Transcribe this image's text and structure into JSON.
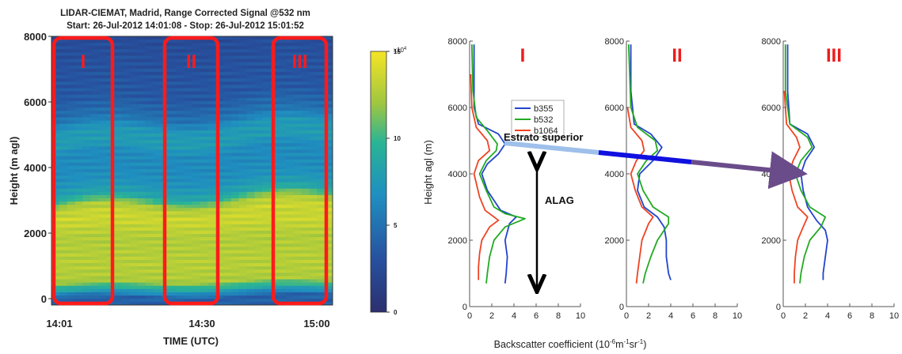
{
  "chart_data": [
    {
      "type": "heatmap",
      "title": "LIDAR-CIEMAT, Madrid, Range Corrected Signal @532 nm",
      "subtitle": "Start: 26-Jul-2012 14:01:08 - Stop: 26-Jul-2012 15:01:52",
      "xlabel": "TIME (UTC)",
      "ylabel": "Height (m agl)",
      "x_ticks": [
        "14:01",
        "14:30",
        "15:00"
      ],
      "y_ticks": [
        "0",
        "2000",
        "4000",
        "6000",
        "8000"
      ],
      "ylim": [
        0,
        8000
      ],
      "colorbar": {
        "multiplier": "x10",
        "exponent": "4",
        "ticks": [
          "0",
          "5",
          "10",
          "15"
        ],
        "range": [
          0,
          15
        ]
      },
      "regions": [
        "I",
        "II",
        "III"
      ],
      "region_color": "#ff1a1a",
      "profile": [
        {
          "z": 0,
          "v": 4
        },
        {
          "z": 200,
          "v": 8
        },
        {
          "z": 500,
          "v": 12.5
        },
        {
          "z": 1000,
          "v": 12.8
        },
        {
          "z": 1800,
          "v": 12.6
        },
        {
          "z": 2400,
          "v": 13.6
        },
        {
          "z": 2700,
          "v": 12.5
        },
        {
          "z": 3000,
          "v": 8.5
        },
        {
          "z": 3400,
          "v": 7
        },
        {
          "z": 3800,
          "v": 6.5
        },
        {
          "z": 4300,
          "v": 6.5
        },
        {
          "z": 4600,
          "v": 7.8
        },
        {
          "z": 5000,
          "v": 7.5
        },
        {
          "z": 5400,
          "v": 5
        },
        {
          "z": 6000,
          "v": 3.5
        },
        {
          "z": 8000,
          "v": 2.5
        }
      ]
    },
    {
      "type": "line",
      "xlabel": "Backscatter coefficient (10⁻⁶m⁻¹sr⁻¹)",
      "ylabel": "Height agl (m)",
      "x_ticks": [
        "0",
        "2",
        "4",
        "6",
        "8",
        "10"
      ],
      "y_ticks": [
        "0",
        "2000",
        "4000",
        "6000",
        "8000"
      ],
      "xlim": [
        0,
        10
      ],
      "ylim": [
        0,
        8000
      ],
      "legend": {
        "placement": "top-left of panel I",
        "entries": [
          "b355",
          "b532",
          "b1064"
        ]
      },
      "series_colors": {
        "b355": "#2244cc",
        "b532": "#22aa22",
        "b1064": "#ee4422"
      },
      "panels": [
        {
          "label": "I",
          "series": [
            {
              "name": "b355",
              "points": [
                [
                  3.2,
                  700
                ],
                [
                  3.3,
                  1000
                ],
                [
                  3.4,
                  1500
                ],
                [
                  3.2,
                  2000
                ],
                [
                  3.6,
                  2500
                ],
                [
                  4.2,
                  2700
                ],
                [
                  2.8,
                  2900
                ],
                [
                  1.6,
                  3500
                ],
                [
                  1.1,
                  4000
                ],
                [
                  1.6,
                  4300
                ],
                [
                  2.6,
                  4600
                ],
                [
                  3.2,
                  4900
                ],
                [
                  2.6,
                  5200
                ],
                [
                  0.8,
                  5500
                ],
                [
                  0.4,
                  6000
                ],
                [
                  0.4,
                  7000
                ],
                [
                  0.4,
                  7900
                ]
              ]
            },
            {
              "name": "b532",
              "points": [
                [
                  1.5,
                  700
                ],
                [
                  1.6,
                  1000
                ],
                [
                  1.8,
                  1500
                ],
                [
                  2.2,
                  2000
                ],
                [
                  3.2,
                  2400
                ],
                [
                  5.0,
                  2650
                ],
                [
                  3.2,
                  2800
                ],
                [
                  2.2,
                  3000
                ],
                [
                  1.5,
                  3500
                ],
                [
                  0.9,
                  4000
                ],
                [
                  1.5,
                  4400
                ],
                [
                  2.4,
                  4700
                ],
                [
                  2.5,
                  4900
                ],
                [
                  1.6,
                  5300
                ],
                [
                  0.6,
                  5700
                ],
                [
                  0.3,
                  6500
                ],
                [
                  0.2,
                  7900
                ]
              ]
            },
            {
              "name": "b1064",
              "points": [
                [
                  0.8,
                  800
                ],
                [
                  0.8,
                  1200
                ],
                [
                  0.9,
                  1600
                ],
                [
                  1.1,
                  2000
                ],
                [
                  1.8,
                  2400
                ],
                [
                  2.6,
                  2600
                ],
                [
                  1.4,
                  2900
                ],
                [
                  0.9,
                  3300
                ],
                [
                  0.4,
                  4000
                ],
                [
                  0.8,
                  4400
                ],
                [
                  1.8,
                  4700
                ],
                [
                  1.6,
                  5000
                ],
                [
                  0.6,
                  5400
                ],
                [
                  0.2,
                  6000
                ],
                [
                  0.1,
                  7000
                ]
              ]
            }
          ]
        },
        {
          "label": "II",
          "series": [
            {
              "name": "b355",
              "points": [
                [
                  4.0,
                  800
                ],
                [
                  3.8,
                  1000
                ],
                [
                  3.6,
                  1500
                ],
                [
                  3.6,
                  2000
                ],
                [
                  3.4,
                  2400
                ],
                [
                  2.8,
                  2700
                ],
                [
                  1.6,
                  3000
                ],
                [
                  1.0,
                  3500
                ],
                [
                  1.2,
                  4000
                ],
                [
                  2.4,
                  4400
                ],
                [
                  3.2,
                  4800
                ],
                [
                  2.2,
                  5200
                ],
                [
                  0.7,
                  5500
                ],
                [
                  0.4,
                  6500
                ],
                [
                  0.4,
                  7900
                ]
              ]
            },
            {
              "name": "b532",
              "points": [
                [
                  1.5,
                  700
                ],
                [
                  1.7,
                  1000
                ],
                [
                  2.2,
                  1500
                ],
                [
                  2.8,
                  2000
                ],
                [
                  3.8,
                  2500
                ],
                [
                  3.8,
                  2700
                ],
                [
                  2.4,
                  3000
                ],
                [
                  1.5,
                  3500
                ],
                [
                  1.0,
                  4000
                ],
                [
                  1.8,
                  4400
                ],
                [
                  2.8,
                  4700
                ],
                [
                  2.6,
                  5000
                ],
                [
                  1.0,
                  5400
                ],
                [
                  0.4,
                  6000
                ],
                [
                  0.2,
                  7900
                ]
              ]
            },
            {
              "name": "b1064",
              "points": [
                [
                  0.9,
                  700
                ],
                [
                  1.0,
                  1000
                ],
                [
                  1.2,
                  1500
                ],
                [
                  1.4,
                  2000
                ],
                [
                  2.0,
                  2500
                ],
                [
                  2.4,
                  2700
                ],
                [
                  1.4,
                  3000
                ],
                [
                  0.8,
                  3500
                ],
                [
                  0.4,
                  4000
                ],
                [
                  0.9,
                  4400
                ],
                [
                  1.6,
                  4700
                ],
                [
                  1.4,
                  5000
                ],
                [
                  0.4,
                  5400
                ],
                [
                  0.1,
                  6000
                ]
              ]
            }
          ]
        },
        {
          "label": "III",
          "series": [
            {
              "name": "b355",
              "points": [
                [
                  3.6,
                  800
                ],
                [
                  3.6,
                  1000
                ],
                [
                  3.8,
                  1500
                ],
                [
                  4.0,
                  2000
                ],
                [
                  3.8,
                  2300
                ],
                [
                  3.0,
                  2600
                ],
                [
                  2.2,
                  3000
                ],
                [
                  1.8,
                  3500
                ],
                [
                  1.6,
                  4000
                ],
                [
                  2.0,
                  4400
                ],
                [
                  2.8,
                  4800
                ],
                [
                  2.2,
                  5200
                ],
                [
                  0.6,
                  5500
                ],
                [
                  0.4,
                  6500
                ],
                [
                  0.4,
                  7900
                ]
              ]
            },
            {
              "name": "b532",
              "points": [
                [
                  1.5,
                  700
                ],
                [
                  1.6,
                  1000
                ],
                [
                  1.9,
                  1500
                ],
                [
                  2.4,
                  2000
                ],
                [
                  3.4,
                  2400
                ],
                [
                  3.8,
                  2700
                ],
                [
                  2.4,
                  3000
                ],
                [
                  1.6,
                  3500
                ],
                [
                  1.1,
                  4000
                ],
                [
                  1.6,
                  4400
                ],
                [
                  2.6,
                  4800
                ],
                [
                  2.2,
                  5100
                ],
                [
                  0.6,
                  5500
                ],
                [
                  0.2,
                  6500
                ],
                [
                  0.2,
                  7900
                ]
              ]
            },
            {
              "name": "b1064",
              "points": [
                [
                  1.0,
                  700
                ],
                [
                  1.0,
                  1000
                ],
                [
                  1.1,
                  1500
                ],
                [
                  1.3,
                  2000
                ],
                [
                  1.8,
                  2400
                ],
                [
                  2.2,
                  2700
                ],
                [
                  1.3,
                  3000
                ],
                [
                  0.8,
                  3500
                ],
                [
                  0.5,
                  4000
                ],
                [
                  0.9,
                  4400
                ],
                [
                  1.5,
                  4800
                ],
                [
                  1.2,
                  5100
                ],
                [
                  0.3,
                  5500
                ],
                [
                  0.1,
                  6500
                ]
              ]
            }
          ]
        }
      ],
      "annotations": {
        "upper_layer": "Estrato superior",
        "boundary_layer": "ALAG",
        "upper_layer_height": 4000,
        "alag_range": [
          500,
          4200
        ],
        "arrow_color": "#6a4c8a"
      }
    }
  ]
}
